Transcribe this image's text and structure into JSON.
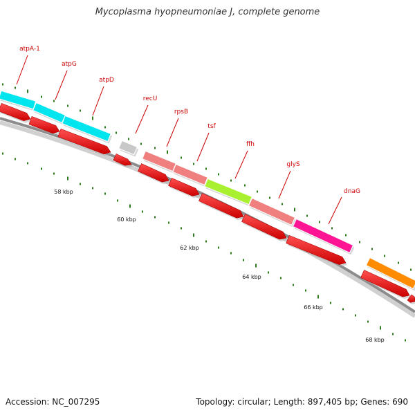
{
  "title": "Mycoplasma hyopneumoniae J, complete genome",
  "footer": {
    "accession_label": "Accession:",
    "accession": "NC_007295",
    "topology_text": "Topology: circular; Length: 897,405 bp; Genes: 690"
  },
  "colors": {
    "backbone": "#8c8c8c",
    "tick": "#2a7a1a",
    "gene_label": "#cc0000",
    "arrow": "#ff0000"
  },
  "genes": [
    {
      "name": "atpA-1",
      "color": "#00e5ee",
      "labeled": true
    },
    {
      "name": "atpG",
      "color": "#00e5ee",
      "labeled": true
    },
    {
      "name": "atpD",
      "color": "#00e5ee",
      "labeled": true
    },
    {
      "name": "recU",
      "color": "#c8c8c8",
      "labeled": true
    },
    {
      "name": "rpsB",
      "color": "#f08080",
      "labeled": true
    },
    {
      "name": "tsf",
      "color": "#f08080",
      "labeled": true
    },
    {
      "name": "ffh",
      "color": "#a8f030",
      "labeled": true
    },
    {
      "name": "glyS",
      "color": "#f08080",
      "labeled": true
    },
    {
      "name": "dnaG",
      "color": "#ff1493",
      "labeled": true
    },
    {
      "name": "",
      "color": "#ff8c00",
      "labeled": false
    }
  ],
  "scale_labels": [
    "58 kbp",
    "60 kbp",
    "62 kbp",
    "64 kbp",
    "66 kbp",
    "68 kbp"
  ]
}
